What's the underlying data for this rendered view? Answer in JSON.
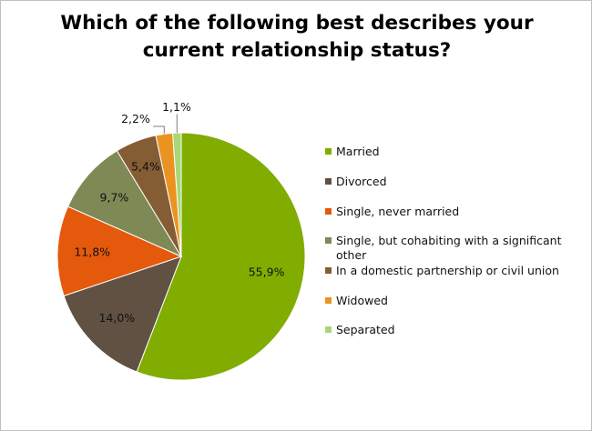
{
  "chart_data": {
    "type": "pie",
    "title": "Which of the following best describes your current relationship status?",
    "title_lines": [
      "Which of the following best describes your",
      "current relationship status?"
    ],
    "slices": [
      {
        "name": "Married",
        "value": 55.9,
        "label": "55,9%",
        "color": "#80ad00"
      },
      {
        "name": "Divorced",
        "value": 14.0,
        "label": "14,0%",
        "color": "#615142"
      },
      {
        "name": "Single, never married",
        "value": 11.8,
        "label": "11,8%",
        "color": "#e4590c"
      },
      {
        "name": "Single, but cohabiting with a significant other",
        "value": 9.7,
        "label": "9,7%",
        "color": "#7f8956"
      },
      {
        "name": "In a domestic partnership or civil union",
        "value": 5.4,
        "label": "5,4%",
        "color": "#845d35"
      },
      {
        "name": "Widowed",
        "value": 2.2,
        "label": "2,2%",
        "color": "#eb9320"
      },
      {
        "name": "Separated",
        "value": 1.1,
        "label": "1,1%",
        "color": "#a8d777"
      }
    ],
    "legend_position": "right",
    "grid": false
  }
}
